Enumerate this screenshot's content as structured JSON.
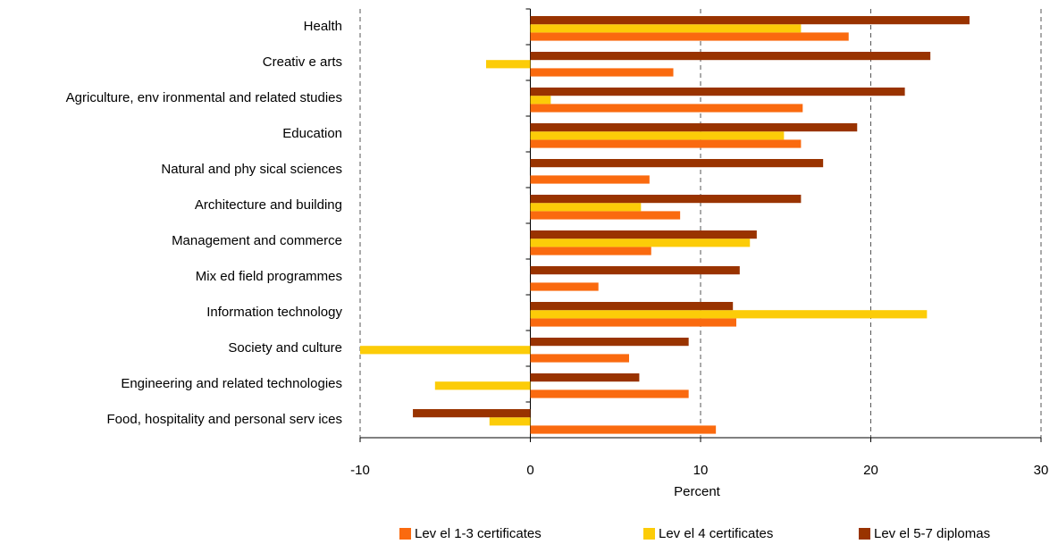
{
  "chart_data": {
    "type": "hbar",
    "categories": [
      "Health",
      "Creativ e arts",
      "Agriculture, env ironmental and related studies",
      "Education",
      "Natural and phy sical sciences",
      "Architecture and building",
      "Management and commerce",
      "Mix ed field programmes",
      "Information technology",
      "Society and culture",
      "Engineering and related technologies",
      "Food, hospitality and personal serv ices"
    ],
    "series": [
      {
        "name": "Lev el 1-3 certificates",
        "color": "#fa6a0f",
        "values": [
          18.7,
          8.4,
          16.0,
          15.9,
          7.0,
          8.8,
          7.1,
          4.0,
          12.1,
          5.8,
          9.3,
          10.9
        ]
      },
      {
        "name": "Lev el 4 certificates",
        "color": "#fccc08",
        "values": [
          15.9,
          -2.6,
          1.2,
          14.9,
          null,
          6.5,
          12.9,
          null,
          23.3,
          -10,
          -5.6,
          -2.4
        ]
      },
      {
        "name": "Lev el 5-7 diplomas",
        "color": "#993300",
        "values": [
          25.8,
          23.5,
          22.0,
          19.2,
          17.2,
          15.9,
          13.3,
          12.3,
          11.9,
          9.3,
          6.4,
          -6.9
        ]
      }
    ],
    "xlabel": "Percent",
    "xlim": [
      -10,
      30
    ],
    "xticks": [
      -10,
      0,
      10,
      20,
      30
    ],
    "grid": true
  }
}
